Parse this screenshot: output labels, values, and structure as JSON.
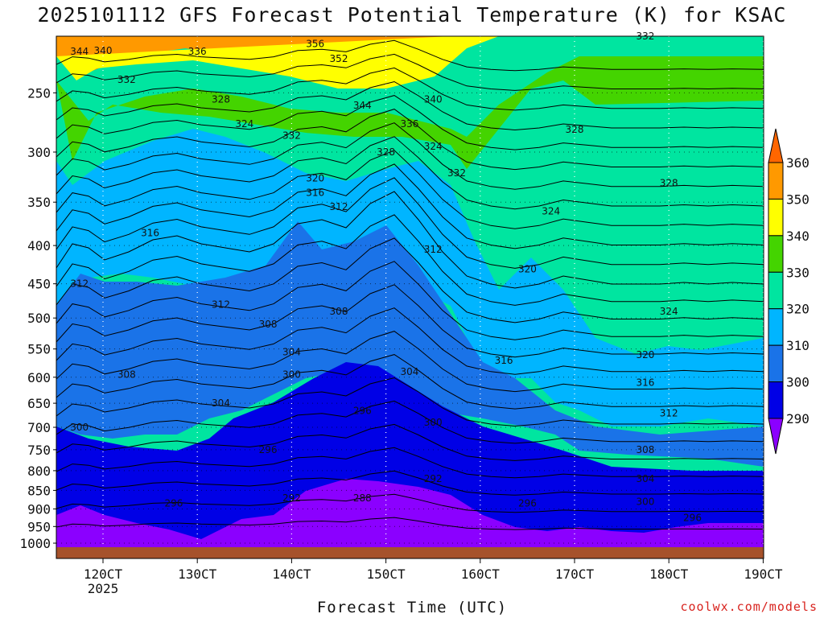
{
  "title": "2025101112 GFS Forecast Potential Temperature (K) for KSAC",
  "credit": "coolwx.com/models",
  "chart_data": {
    "type": "filled-contour",
    "title": "2025101112 GFS Forecast Potential Temperature (K) for KSAC",
    "xlabel": "Forecast Time (UTC)",
    "ylabel": "",
    "x_ticks": [
      "12 0CT",
      "13 0CT",
      "14 0CT",
      "15 0CT",
      "16 0CT",
      "17 0CT",
      "18 0CT",
      "19 0CT"
    ],
    "x_tick_labels": [
      "120CT",
      "130CT",
      "140CT",
      "150CT",
      "160CT",
      "170CT",
      "180CT",
      "190CT"
    ],
    "x_sub_label": "2025",
    "y_ticks_hpa": [
      250,
      300,
      350,
      400,
      450,
      500,
      550,
      600,
      650,
      700,
      750,
      800,
      850,
      900,
      950,
      1000
    ],
    "y_scale": "log",
    "contour_interval_K": 4,
    "colorbar": {
      "levels": [
        290,
        300,
        310,
        320,
        330,
        340,
        350,
        360
      ],
      "colors": [
        "#8b00ff",
        "#0000e6",
        "#1a73e8",
        "#00b5ff",
        "#00e5a0",
        "#44d400",
        "#ffff00",
        "#ff9900",
        "#ff6600"
      ]
    },
    "contour_labels": [
      {
        "value": "340",
        "t": "12-00",
        "p": "top"
      },
      {
        "value": "344",
        "t": "11-18",
        "p": "220"
      },
      {
        "value": "336",
        "t": "13-00",
        "p": "220"
      },
      {
        "value": "332",
        "t": "12-06",
        "p": "240"
      },
      {
        "value": "328",
        "t": "13-06",
        "p": "255"
      },
      {
        "value": "324",
        "t": "13-12",
        "p": "275"
      },
      {
        "value": "356",
        "t": "14-06",
        "p": "215"
      },
      {
        "value": "352",
        "t": "14-12",
        "p": "225"
      },
      {
        "value": "344",
        "t": "14-18",
        "p": "260"
      },
      {
        "value": "340",
        "t": "15-12",
        "p": "255"
      },
      {
        "value": "336",
        "t": "15-06",
        "p": "275"
      },
      {
        "value": "332",
        "t": "14-00",
        "p": "285"
      },
      {
        "value": "328",
        "t": "15-00",
        "p": "300"
      },
      {
        "value": "324",
        "t": "15-12",
        "p": "295"
      },
      {
        "value": "320",
        "t": "14-06",
        "p": "325"
      },
      {
        "value": "316",
        "t": "14-06",
        "p": "340"
      },
      {
        "value": "312",
        "t": "14-12",
        "p": "355"
      },
      {
        "value": "332",
        "t": "15-18",
        "p": "320"
      },
      {
        "value": "316",
        "t": "12-12",
        "p": "385"
      },
      {
        "value": "312",
        "t": "11-18",
        "p": "450"
      },
      {
        "value": "312",
        "t": "13-06",
        "p": "480"
      },
      {
        "value": "308",
        "t": "13-18",
        "p": "510"
      },
      {
        "value": "308",
        "t": "14-12",
        "p": "490"
      },
      {
        "value": "304",
        "t": "14-00",
        "p": "555"
      },
      {
        "value": "300",
        "t": "14-00",
        "p": "595"
      },
      {
        "value": "312",
        "t": "15-12",
        "p": "405"
      },
      {
        "value": "304",
        "t": "15-06",
        "p": "590"
      },
      {
        "value": "308",
        "t": "12-06",
        "p": "595"
      },
      {
        "value": "304",
        "t": "13-06",
        "p": "650"
      },
      {
        "value": "300",
        "t": "11-18",
        "p": "700"
      },
      {
        "value": "296",
        "t": "14-18",
        "p": "665"
      },
      {
        "value": "300",
        "t": "15-12",
        "p": "690"
      },
      {
        "value": "296",
        "t": "13-18",
        "p": "750"
      },
      {
        "value": "292",
        "t": "15-12",
        "p": "820"
      },
      {
        "value": "292",
        "t": "14-00",
        "p": "870"
      },
      {
        "value": "288",
        "t": "14-18",
        "p": "870"
      },
      {
        "value": "296",
        "t": "12-18",
        "p": "885"
      },
      {
        "value": "296",
        "t": "16-12",
        "p": "885"
      },
      {
        "value": "328",
        "t": "17-00",
        "p": "280"
      },
      {
        "value": "332",
        "t": "17-18",
        "p": "210"
      },
      {
        "value": "328",
        "t": "18-00",
        "p": "330"
      },
      {
        "value": "324",
        "t": "16-18",
        "p": "360"
      },
      {
        "value": "320",
        "t": "16-12",
        "p": "430"
      },
      {
        "value": "324",
        "t": "18-00",
        "p": "490"
      },
      {
        "value": "316",
        "t": "16-06",
        "p": "570"
      },
      {
        "value": "320",
        "t": "17-18",
        "p": "560"
      },
      {
        "value": "316",
        "t": "17-18",
        "p": "610"
      },
      {
        "value": "312",
        "t": "18-00",
        "p": "670"
      },
      {
        "value": "308",
        "t": "17-18",
        "p": "750"
      },
      {
        "value": "304",
        "t": "17-18",
        "p": "820"
      },
      {
        "value": "300",
        "t": "17-18",
        "p": "880"
      },
      {
        "value": "296",
        "t": "18-06",
        "p": "925"
      }
    ]
  }
}
